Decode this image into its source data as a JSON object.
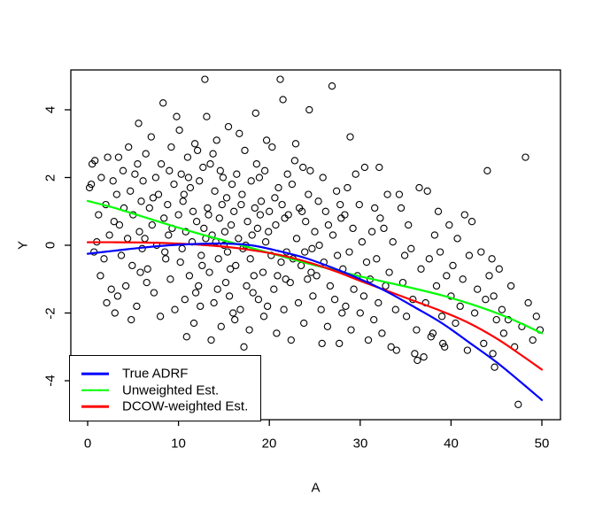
{
  "chart_data": {
    "type": "scatter",
    "title": "",
    "xlabel": "A",
    "ylabel": "Y",
    "x_ticks": [
      0,
      10,
      20,
      30,
      40,
      50
    ],
    "y_ticks": [
      4,
      2,
      0,
      -2,
      -4
    ],
    "xlim": [
      -1.9,
      52.1
    ],
    "ylim": [
      -5.15,
      5.18
    ],
    "grid": false,
    "background_color": "#FFFFFF",
    "box_color": "#000000",
    "marker": "open-circle",
    "marker_color": "#000000",
    "legend": {
      "position": "bottom-left",
      "entries": [
        {
          "label": "True ADRF",
          "color": "#0000FF"
        },
        {
          "label": "Unweighted Est.",
          "color": "#00FF00"
        },
        {
          "label": "DCOW-weighted Est.",
          "color": "#FF0000"
        }
      ]
    },
    "curves": [
      {
        "name": "True ADRF",
        "color": "#0000FF",
        "points": [
          [
            0,
            -0.25
          ],
          [
            3,
            -0.16
          ],
          [
            6,
            -0.07
          ],
          [
            9,
            0.0
          ],
          [
            12,
            0.04
          ],
          [
            15,
            0.05
          ],
          [
            18,
            0.0
          ],
          [
            21,
            -0.17
          ],
          [
            24,
            -0.38
          ],
          [
            27,
            -0.67
          ],
          [
            30,
            -1.0
          ],
          [
            33,
            -1.38
          ],
          [
            36,
            -1.83
          ],
          [
            39,
            -2.3
          ],
          [
            42,
            -2.87
          ],
          [
            45,
            -3.45
          ],
          [
            47.5,
            -4.0
          ],
          [
            50,
            -4.57
          ]
        ]
      },
      {
        "name": "Unweighted Est.",
        "color": "#00FF00",
        "points": [
          [
            0,
            1.31
          ],
          [
            3,
            1.1
          ],
          [
            6,
            0.85
          ],
          [
            9,
            0.6
          ],
          [
            12,
            0.36
          ],
          [
            15,
            0.14
          ],
          [
            18,
            -0.08
          ],
          [
            21,
            -0.3
          ],
          [
            24,
            -0.52
          ],
          [
            27,
            -0.72
          ],
          [
            30,
            -0.92
          ],
          [
            33,
            -1.1
          ],
          [
            36,
            -1.28
          ],
          [
            39,
            -1.48
          ],
          [
            42,
            -1.72
          ],
          [
            45,
            -2.0
          ],
          [
            47.5,
            -2.28
          ],
          [
            50,
            -2.6
          ]
        ]
      },
      {
        "name": "DCOW-weighted Est.",
        "color": "#FF0000",
        "points": [
          [
            0,
            0.09
          ],
          [
            3,
            0.09
          ],
          [
            6,
            0.08
          ],
          [
            9,
            0.06
          ],
          [
            12,
            0.02
          ],
          [
            15,
            -0.04
          ],
          [
            18,
            -0.14
          ],
          [
            21,
            -0.28
          ],
          [
            24,
            -0.48
          ],
          [
            27,
            -0.74
          ],
          [
            30,
            -1.05
          ],
          [
            33,
            -1.35
          ],
          [
            36,
            -1.65
          ],
          [
            39,
            -1.95
          ],
          [
            42,
            -2.3
          ],
          [
            45,
            -2.75
          ],
          [
            47.5,
            -3.2
          ],
          [
            50,
            -3.67
          ]
        ]
      }
    ],
    "scatter_points": [
      [
        0.2,
        1.7
      ],
      [
        0.4,
        1.8
      ],
      [
        0.5,
        2.4
      ],
      [
        0.7,
        -0.2
      ],
      [
        0.8,
        2.5
      ],
      [
        1.0,
        0.1
      ],
      [
        1.2,
        0.9
      ],
      [
        1.4,
        -0.9
      ],
      [
        1.5,
        2.0
      ],
      [
        1.8,
        -0.4
      ],
      [
        2.0,
        1.2
      ],
      [
        2.1,
        -1.7
      ],
      [
        2.2,
        2.6
      ],
      [
        2.4,
        0.3
      ],
      [
        2.6,
        -1.3
      ],
      [
        2.8,
        1.9
      ],
      [
        2.9,
        0.7
      ],
      [
        3.0,
        -2.0
      ],
      [
        3.2,
        1.5
      ],
      [
        3.3,
        -1.5
      ],
      [
        3.4,
        2.6
      ],
      [
        3.5,
        0.6
      ],
      [
        3.7,
        -0.3
      ],
      [
        3.9,
        2.2
      ],
      [
        4.0,
        1.1
      ],
      [
        4.2,
        -1.2
      ],
      [
        4.4,
        0.2
      ],
      [
        4.5,
        2.9
      ],
      [
        4.7,
        1.6
      ],
      [
        4.8,
        -2.2
      ],
      [
        4.9,
        -0.6
      ],
      [
        5.0,
        0.9
      ],
      [
        5.2,
        2.1
      ],
      [
        5.4,
        -1.8
      ],
      [
        5.5,
        2.4
      ],
      [
        5.6,
        3.6
      ],
      [
        5.7,
        0.4
      ],
      [
        5.8,
        -0.8
      ],
      [
        5.9,
        1.3
      ],
      [
        6.0,
        -0.1
      ],
      [
        6.1,
        1.9
      ],
      [
        6.3,
        0.2
      ],
      [
        6.4,
        2.7
      ],
      [
        6.5,
        -1.1
      ],
      [
        6.6,
        -0.7
      ],
      [
        6.8,
        1.1
      ],
      [
        7.0,
        3.2
      ],
      [
        7.1,
        0.6
      ],
      [
        7.2,
        1.4
      ],
      [
        7.3,
        -1.4
      ],
      [
        7.5,
        2.0
      ],
      [
        7.6,
        0.0
      ],
      [
        7.8,
        1.5
      ],
      [
        8.0,
        -2.1
      ],
      [
        8.1,
        2.4
      ],
      [
        8.3,
        4.2
      ],
      [
        8.4,
        0.8
      ],
      [
        8.5,
        -0.2
      ],
      [
        8.6,
        -0.4
      ],
      [
        8.8,
        1.2
      ],
      [
        8.9,
        0.3
      ],
      [
        9.0,
        2.2
      ],
      [
        9.1,
        -1.0
      ],
      [
        9.2,
        2.9
      ],
      [
        9.3,
        0.5
      ],
      [
        9.5,
        1.8
      ],
      [
        9.6,
        -1.9
      ],
      [
        9.8,
        3.8
      ],
      [
        10.0,
        0.9
      ],
      [
        10.1,
        3.4
      ],
      [
        10.2,
        -0.5
      ],
      [
        10.3,
        2.1
      ],
      [
        10.4,
        -0.1
      ],
      [
        10.5,
        1.3
      ],
      [
        10.6,
        1.5
      ],
      [
        10.7,
        -1.6
      ],
      [
        10.8,
        0.4
      ],
      [
        10.9,
        -2.7
      ],
      [
        11.0,
        2.6
      ],
      [
        11.1,
        2.0
      ],
      [
        11.2,
        -0.9
      ],
      [
        11.3,
        1.7
      ],
      [
        11.5,
        0.1
      ],
      [
        11.6,
        1.0
      ],
      [
        11.7,
        -2.3
      ],
      [
        11.8,
        3.0
      ],
      [
        11.9,
        -1.4
      ],
      [
        12.0,
        0.7
      ],
      [
        12.1,
        2.8
      ],
      [
        12.2,
        -1.2
      ],
      [
        12.3,
        1.9
      ],
      [
        12.4,
        -1.8
      ],
      [
        12.5,
        -0.3
      ],
      [
        12.6,
        -0.6
      ],
      [
        12.7,
        2.3
      ],
      [
        12.8,
        0.5
      ],
      [
        12.9,
        4.9
      ],
      [
        13.0,
        0.2
      ],
      [
        13.1,
        3.8
      ],
      [
        13.2,
        1.1
      ],
      [
        13.3,
        0.9
      ],
      [
        13.4,
        -0.8
      ],
      [
        13.5,
        2.4
      ],
      [
        13.6,
        -2.8
      ],
      [
        13.7,
        0.3
      ],
      [
        13.8,
        2.7
      ],
      [
        13.9,
        -1.7
      ],
      [
        14.0,
        1.6
      ],
      [
        14.1,
        0.1
      ],
      [
        14.2,
        3.1
      ],
      [
        14.3,
        -1.3
      ],
      [
        14.4,
        -0.4
      ],
      [
        14.5,
        0.8
      ],
      [
        14.6,
        2.2
      ],
      [
        14.7,
        -2.4
      ],
      [
        14.8,
        1.2
      ],
      [
        14.9,
        2.0
      ],
      [
        15.0,
        0.0
      ],
      [
        15.1,
        0.4
      ],
      [
        15.2,
        -1.1
      ],
      [
        15.3,
        1.4
      ],
      [
        15.4,
        -0.2
      ],
      [
        15.5,
        3.5
      ],
      [
        15.6,
        -1.5
      ],
      [
        15.7,
        -0.7
      ],
      [
        15.8,
        0.6
      ],
      [
        15.9,
        1.8
      ],
      [
        16.0,
        -2.0
      ],
      [
        16.1,
        1.0
      ],
      [
        16.2,
        -2.2
      ],
      [
        16.3,
        -0.6
      ],
      [
        16.4,
        2.1
      ],
      [
        16.6,
        0.2
      ],
      [
        16.7,
        3.3
      ],
      [
        16.8,
        -1.9
      ],
      [
        16.9,
        1.2
      ],
      [
        17.0,
        1.5
      ],
      [
        17.1,
        -0.1
      ],
      [
        17.2,
        -3.0
      ],
      [
        17.3,
        2.8
      ],
      [
        17.4,
        0.0
      ],
      [
        17.5,
        -1.2
      ],
      [
        17.6,
        0.7
      ],
      [
        17.8,
        -2.5
      ],
      [
        17.9,
        -0.4
      ],
      [
        18.0,
        1.9
      ],
      [
        18.1,
        0.3
      ],
      [
        18.2,
        -1.4
      ],
      [
        18.3,
        -0.9
      ],
      [
        18.4,
        1.1
      ],
      [
        18.5,
        3.9
      ],
      [
        18.6,
        2.4
      ],
      [
        18.7,
        0.5
      ],
      [
        18.8,
        -1.6
      ],
      [
        18.9,
        2.0
      ],
      [
        19.0,
        0.9
      ],
      [
        19.1,
        1.3
      ],
      [
        19.3,
        -0.8
      ],
      [
        19.4,
        -2.1
      ],
      [
        19.5,
        2.2
      ],
      [
        19.6,
        0.1
      ],
      [
        19.7,
        3.1
      ],
      [
        19.8,
        -1.8
      ],
      [
        19.9,
        0.4
      ],
      [
        20.0,
        1.0
      ],
      [
        20.2,
        -0.3
      ],
      [
        20.3,
        2.9
      ],
      [
        20.5,
        -1.3
      ],
      [
        20.6,
        1.4
      ],
      [
        20.7,
        0.6
      ],
      [
        20.8,
        -2.6
      ],
      [
        20.9,
        -0.9
      ],
      [
        21.0,
        1.7
      ],
      [
        21.2,
        4.9
      ],
      [
        21.3,
        -0.5
      ],
      [
        21.4,
        1.2
      ],
      [
        21.5,
        4.3
      ],
      [
        21.6,
        -1.9
      ],
      [
        21.7,
        0.8
      ],
      [
        21.8,
        -1.0
      ],
      [
        21.9,
        -0.2
      ],
      [
        22.0,
        2.1
      ],
      [
        22.1,
        0.9
      ],
      [
        22.3,
        -1.1
      ],
      [
        22.4,
        -2.8
      ],
      [
        22.5,
        1.8
      ],
      [
        22.6,
        -0.4
      ],
      [
        22.8,
        2.5
      ],
      [
        22.9,
        3.0
      ],
      [
        23.0,
        0.2
      ],
      [
        23.2,
        -1.7
      ],
      [
        23.3,
        1.1
      ],
      [
        23.5,
        -0.6
      ],
      [
        23.6,
        1.0
      ],
      [
        23.7,
        2.3
      ],
      [
        23.8,
        -2.3
      ],
      [
        23.9,
        -0.2
      ],
      [
        24.0,
        0.7
      ],
      [
        24.2,
        -1.0
      ],
      [
        24.3,
        1.5
      ],
      [
        24.4,
        4.0
      ],
      [
        24.5,
        2.2
      ],
      [
        24.6,
        -0.8
      ],
      [
        24.7,
        -0.1
      ],
      [
        24.8,
        -1.5
      ],
      [
        25.0,
        0.4
      ],
      [
        25.2,
        -0.9
      ],
      [
        25.4,
        1.3
      ],
      [
        25.5,
        0.0
      ],
      [
        25.7,
        -1.9
      ],
      [
        25.8,
        -2.9
      ],
      [
        25.9,
        2.0
      ],
      [
        26.0,
        -0.5
      ],
      [
        26.2,
        1.0
      ],
      [
        26.4,
        -2.4
      ],
      [
        26.5,
        0.6
      ],
      [
        26.7,
        -1.2
      ],
      [
        26.9,
        4.7
      ],
      [
        27.0,
        0.3
      ],
      [
        27.2,
        -1.6
      ],
      [
        27.4,
        1.6
      ],
      [
        27.5,
        -0.3
      ],
      [
        27.7,
        -2.9
      ],
      [
        27.8,
        1.2
      ],
      [
        27.9,
        0.8
      ],
      [
        28.0,
        -2.0
      ],
      [
        28.1,
        -0.7
      ],
      [
        28.3,
        0.9
      ],
      [
        28.4,
        -1.8
      ],
      [
        28.6,
        1.7
      ],
      [
        28.8,
        -0.2
      ],
      [
        28.9,
        3.2
      ],
      [
        29.0,
        -2.5
      ],
      [
        29.2,
        0.5
      ],
      [
        29.3,
        -1.3
      ],
      [
        29.5,
        2.1
      ],
      [
        29.7,
        -0.9
      ],
      [
        29.9,
        1.2
      ],
      [
        30.0,
        -2.0
      ],
      [
        30.2,
        0.1
      ],
      [
        30.4,
        -1.5
      ],
      [
        30.5,
        2.3
      ],
      [
        30.7,
        -0.5
      ],
      [
        30.9,
        -2.8
      ],
      [
        31.1,
        -1.0
      ],
      [
        31.3,
        0.4
      ],
      [
        31.5,
        -2.2
      ],
      [
        31.6,
        1.1
      ],
      [
        31.8,
        -0.4
      ],
      [
        32.0,
        -1.7
      ],
      [
        32.1,
        2.3
      ],
      [
        32.2,
        0.8
      ],
      [
        32.4,
        -2.6
      ],
      [
        32.6,
        0.5
      ],
      [
        32.8,
        -1.2
      ],
      [
        33.0,
        1.5
      ],
      [
        33.2,
        -0.8
      ],
      [
        33.4,
        -3.0
      ],
      [
        33.6,
        0.1
      ],
      [
        33.9,
        -1.9
      ],
      [
        34.0,
        -3.1
      ],
      [
        34.3,
        1.5
      ],
      [
        34.5,
        1.1
      ],
      [
        34.7,
        -1.1
      ],
      [
        34.9,
        -0.3
      ],
      [
        35.1,
        -2.1
      ],
      [
        35.3,
        0.6
      ],
      [
        35.6,
        -0.1
      ],
      [
        35.8,
        -1.6
      ],
      [
        36.0,
        -3.2
      ],
      [
        36.2,
        -2.5
      ],
      [
        36.3,
        -3.4
      ],
      [
        36.5,
        1.7
      ],
      [
        36.7,
        -0.7
      ],
      [
        37.0,
        -3.3
      ],
      [
        37.2,
        -1.7
      ],
      [
        37.4,
        1.6
      ],
      [
        37.6,
        -0.4
      ],
      [
        37.8,
        -2.7
      ],
      [
        38.0,
        -2.6
      ],
      [
        38.2,
        0.3
      ],
      [
        38.4,
        -1.2
      ],
      [
        38.6,
        1.0
      ],
      [
        38.8,
        -0.2
      ],
      [
        39.0,
        -2.1
      ],
      [
        39.1,
        -2.9
      ],
      [
        39.3,
        -3.0
      ],
      [
        39.5,
        -0.9
      ],
      [
        39.8,
        0.6
      ],
      [
        40.0,
        -1.5
      ],
      [
        40.2,
        -0.6
      ],
      [
        40.5,
        -2.3
      ],
      [
        40.7,
        0.2
      ],
      [
        41.0,
        -1.8
      ],
      [
        41.3,
        -1.0
      ],
      [
        41.5,
        0.9
      ],
      [
        41.8,
        -3.1
      ],
      [
        42.0,
        -0.3
      ],
      [
        42.3,
        0.7
      ],
      [
        42.6,
        -2.0
      ],
      [
        42.9,
        -1.3
      ],
      [
        43.3,
        -0.2
      ],
      [
        43.6,
        -2.9
      ],
      [
        43.8,
        -1.6
      ],
      [
        44.0,
        2.2
      ],
      [
        44.2,
        -0.9
      ],
      [
        44.5,
        -0.4
      ],
      [
        44.6,
        -3.2
      ],
      [
        44.7,
        -1.5
      ],
      [
        44.8,
        -3.6
      ],
      [
        45.0,
        -2.2
      ],
      [
        45.3,
        -0.7
      ],
      [
        45.6,
        -1.9
      ],
      [
        45.8,
        -2.6
      ],
      [
        46.3,
        -2.2
      ],
      [
        46.6,
        -1.2
      ],
      [
        47.0,
        -3.0
      ],
      [
        47.4,
        -4.7
      ],
      [
        47.8,
        -2.4
      ],
      [
        48.2,
        2.6
      ],
      [
        48.5,
        -1.7
      ],
      [
        49.0,
        -2.8
      ],
      [
        49.4,
        -2.1
      ],
      [
        49.8,
        -2.5
      ]
    ]
  }
}
